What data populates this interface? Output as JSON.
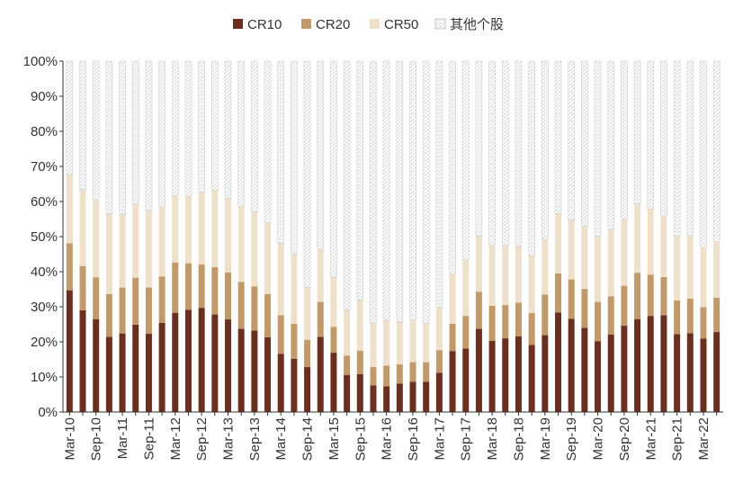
{
  "chart_data": {
    "type": "bar",
    "stacked": true,
    "title": "",
    "xlabel": "",
    "ylabel": "",
    "ylim": [
      0,
      100
    ],
    "y_ticks": [
      "0%",
      "10%",
      "20%",
      "30%",
      "40%",
      "50%",
      "60%",
      "70%",
      "80%",
      "90%",
      "100%"
    ],
    "grid": false,
    "legend_position": "top-center",
    "categories": [
      "Mar-10",
      "Jun-10",
      "Sep-10",
      "Dec-10",
      "Mar-11",
      "Jun-11",
      "Sep-11",
      "Dec-11",
      "Mar-12",
      "Jun-12",
      "Sep-12",
      "Dec-12",
      "Mar-13",
      "Jun-13",
      "Sep-13",
      "Dec-13",
      "Mar-14",
      "Jun-14",
      "Sep-14",
      "Dec-14",
      "Mar-15",
      "Jun-15",
      "Sep-15",
      "Dec-15",
      "Mar-16",
      "Jun-16",
      "Sep-16",
      "Dec-16",
      "Mar-17",
      "Jun-17",
      "Sep-17",
      "Dec-17",
      "Mar-18",
      "Jun-18",
      "Sep-18",
      "Dec-18",
      "Mar-19",
      "Jun-19",
      "Sep-19",
      "Dec-19",
      "Mar-20",
      "Jun-20",
      "Sep-20",
      "Dec-20",
      "Mar-21",
      "Jun-21",
      "Sep-21",
      "Dec-21",
      "Mar-22",
      "Jun-22"
    ],
    "x_tick_labels": [
      "Mar-10",
      "",
      "Sep-10",
      "",
      "Mar-11",
      "",
      "Sep-11",
      "",
      "Mar-12",
      "",
      "Sep-12",
      "",
      "Mar-13",
      "",
      "Sep-13",
      "",
      "Mar-14",
      "",
      "Sep-14",
      "",
      "Mar-15",
      "",
      "Sep-15",
      "",
      "Mar-16",
      "",
      "Sep-16",
      "",
      "Mar-17",
      "",
      "Sep-17",
      "",
      "Mar-18",
      "",
      "Sep-18",
      "",
      "Mar-19",
      "",
      "Sep-19",
      "",
      "Mar-20",
      "",
      "Sep-20",
      "",
      "Mar-21",
      "",
      "Sep-21",
      "",
      "Mar-22",
      ""
    ],
    "series": [
      {
        "name": "CR10",
        "color": "#6b2f22",
        "values": [
          34.7,
          29.0,
          26.5,
          21.4,
          22.4,
          24.9,
          22.3,
          25.4,
          28.3,
          29.1,
          29.7,
          27.8,
          26.4,
          23.7,
          23.2,
          21.3,
          16.6,
          15.2,
          12.8,
          21.4,
          16.9,
          10.6,
          10.8,
          7.6,
          7.3,
          8.1,
          8.6,
          8.6,
          11.2,
          17.4,
          18.1,
          23.7,
          20.3,
          21.0,
          21.6,
          19.1,
          21.9,
          28.4,
          26.6,
          24.0,
          20.2,
          22.1,
          24.6,
          26.5,
          27.4,
          27.6,
          22.2,
          22.5,
          20.9,
          22.8
        ]
      },
      {
        "name": "CR20",
        "color": "#c19a6b",
        "values": [
          13.4,
          12.6,
          11.9,
          12.2,
          13.1,
          13.4,
          13.2,
          13.2,
          14.3,
          13.3,
          12.4,
          13.5,
          13.4,
          13.4,
          12.6,
          12.3,
          11.0,
          10.0,
          7.8,
          10.0,
          7.4,
          5.5,
          6.7,
          5.2,
          5.9,
          5.5,
          5.6,
          5.6,
          6.4,
          7.8,
          9.3,
          10.6,
          10.0,
          9.5,
          9.6,
          9.1,
          11.6,
          11.1,
          11.2,
          11.1,
          11.2,
          10.9,
          11.4,
          13.2,
          11.8,
          10.9,
          9.6,
          9.8,
          9.0,
          9.8
        ]
      },
      {
        "name": "CR50",
        "color": "#eee0cb",
        "values": [
          19.6,
          21.8,
          22.1,
          23.0,
          20.9,
          21.0,
          21.9,
          19.9,
          19.0,
          19.1,
          20.6,
          21.9,
          21.2,
          21.6,
          21.3,
          20.3,
          20.5,
          19.9,
          15.0,
          15.0,
          14.1,
          13.1,
          14.5,
          12.6,
          13.0,
          12.1,
          12.1,
          11.0,
          12.3,
          14.1,
          15.9,
          15.9,
          17.2,
          17.0,
          16.1,
          16.4,
          15.7,
          17.0,
          17.0,
          17.8,
          18.7,
          19.1,
          19.0,
          19.7,
          18.7,
          17.4,
          18.3,
          18.0,
          17.0,
          15.9
        ]
      },
      {
        "name": "其他个股",
        "color": "#ffffff",
        "values": [
          32.3,
          36.6,
          39.5,
          43.4,
          43.6,
          40.7,
          42.6,
          41.5,
          38.4,
          38.5,
          37.3,
          36.8,
          39.0,
          41.3,
          42.9,
          46.1,
          51.9,
          54.9,
          64.4,
          53.6,
          61.6,
          70.8,
          68.0,
          74.6,
          73.8,
          74.3,
          73.7,
          74.8,
          70.1,
          60.7,
          56.7,
          49.8,
          52.5,
          52.5,
          52.7,
          55.4,
          50.8,
          43.5,
          45.2,
          47.1,
          49.9,
          47.9,
          45.0,
          40.6,
          42.1,
          44.1,
          49.9,
          49.7,
          53.1,
          51.5
        ]
      }
    ]
  }
}
